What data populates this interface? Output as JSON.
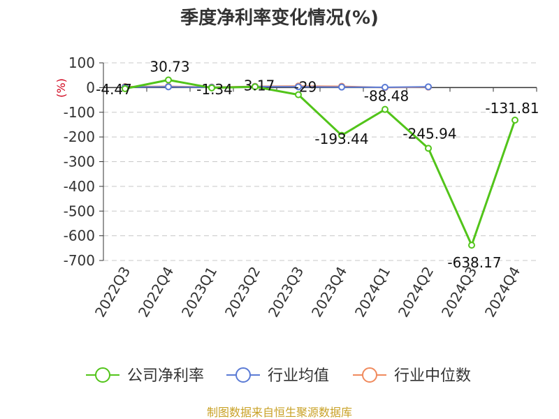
{
  "chart_data": {
    "type": "line",
    "title": "季度净利率变化情况(%)",
    "unit_label": "(%)",
    "categories": [
      "2022Q3",
      "2022Q4",
      "2023Q1",
      "2023Q2",
      "2023Q3",
      "2023Q4",
      "2024Q1",
      "2024Q2",
      "2024Q3",
      "2024Q4"
    ],
    "ylim": [
      -700,
      100
    ],
    "yticks": [
      100,
      0,
      -100,
      -200,
      -300,
      -400,
      -500,
      -600,
      -700
    ],
    "grid": true,
    "legend_position": "bottom",
    "series": [
      {
        "name": "公司净利率",
        "color": "#52c41a",
        "values": [
          -4.47,
          30.73,
          -1.34,
          3.17,
          -29,
          -193.44,
          -88.48,
          -245.94,
          -638.17,
          -131.81
        ],
        "labels": [
          "-4.47",
          "30.73",
          "-1.34",
          "3.17",
          "-29",
          "-193.44",
          "-88.48",
          "-245.94",
          "-638.17",
          "-131.81"
        ]
      },
      {
        "name": "行业均值",
        "color": "#5b7bd5",
        "values": [
          2,
          3,
          1,
          4,
          3,
          2,
          1,
          3,
          null,
          null
        ]
      },
      {
        "name": "行业中位数",
        "color": "#f08a5d",
        "values": [
          4,
          5,
          2,
          5,
          6,
          5,
          0,
          2,
          null,
          null
        ]
      }
    ]
  },
  "footer": {
    "source": "制图数据来自恒生聚源数据库"
  }
}
